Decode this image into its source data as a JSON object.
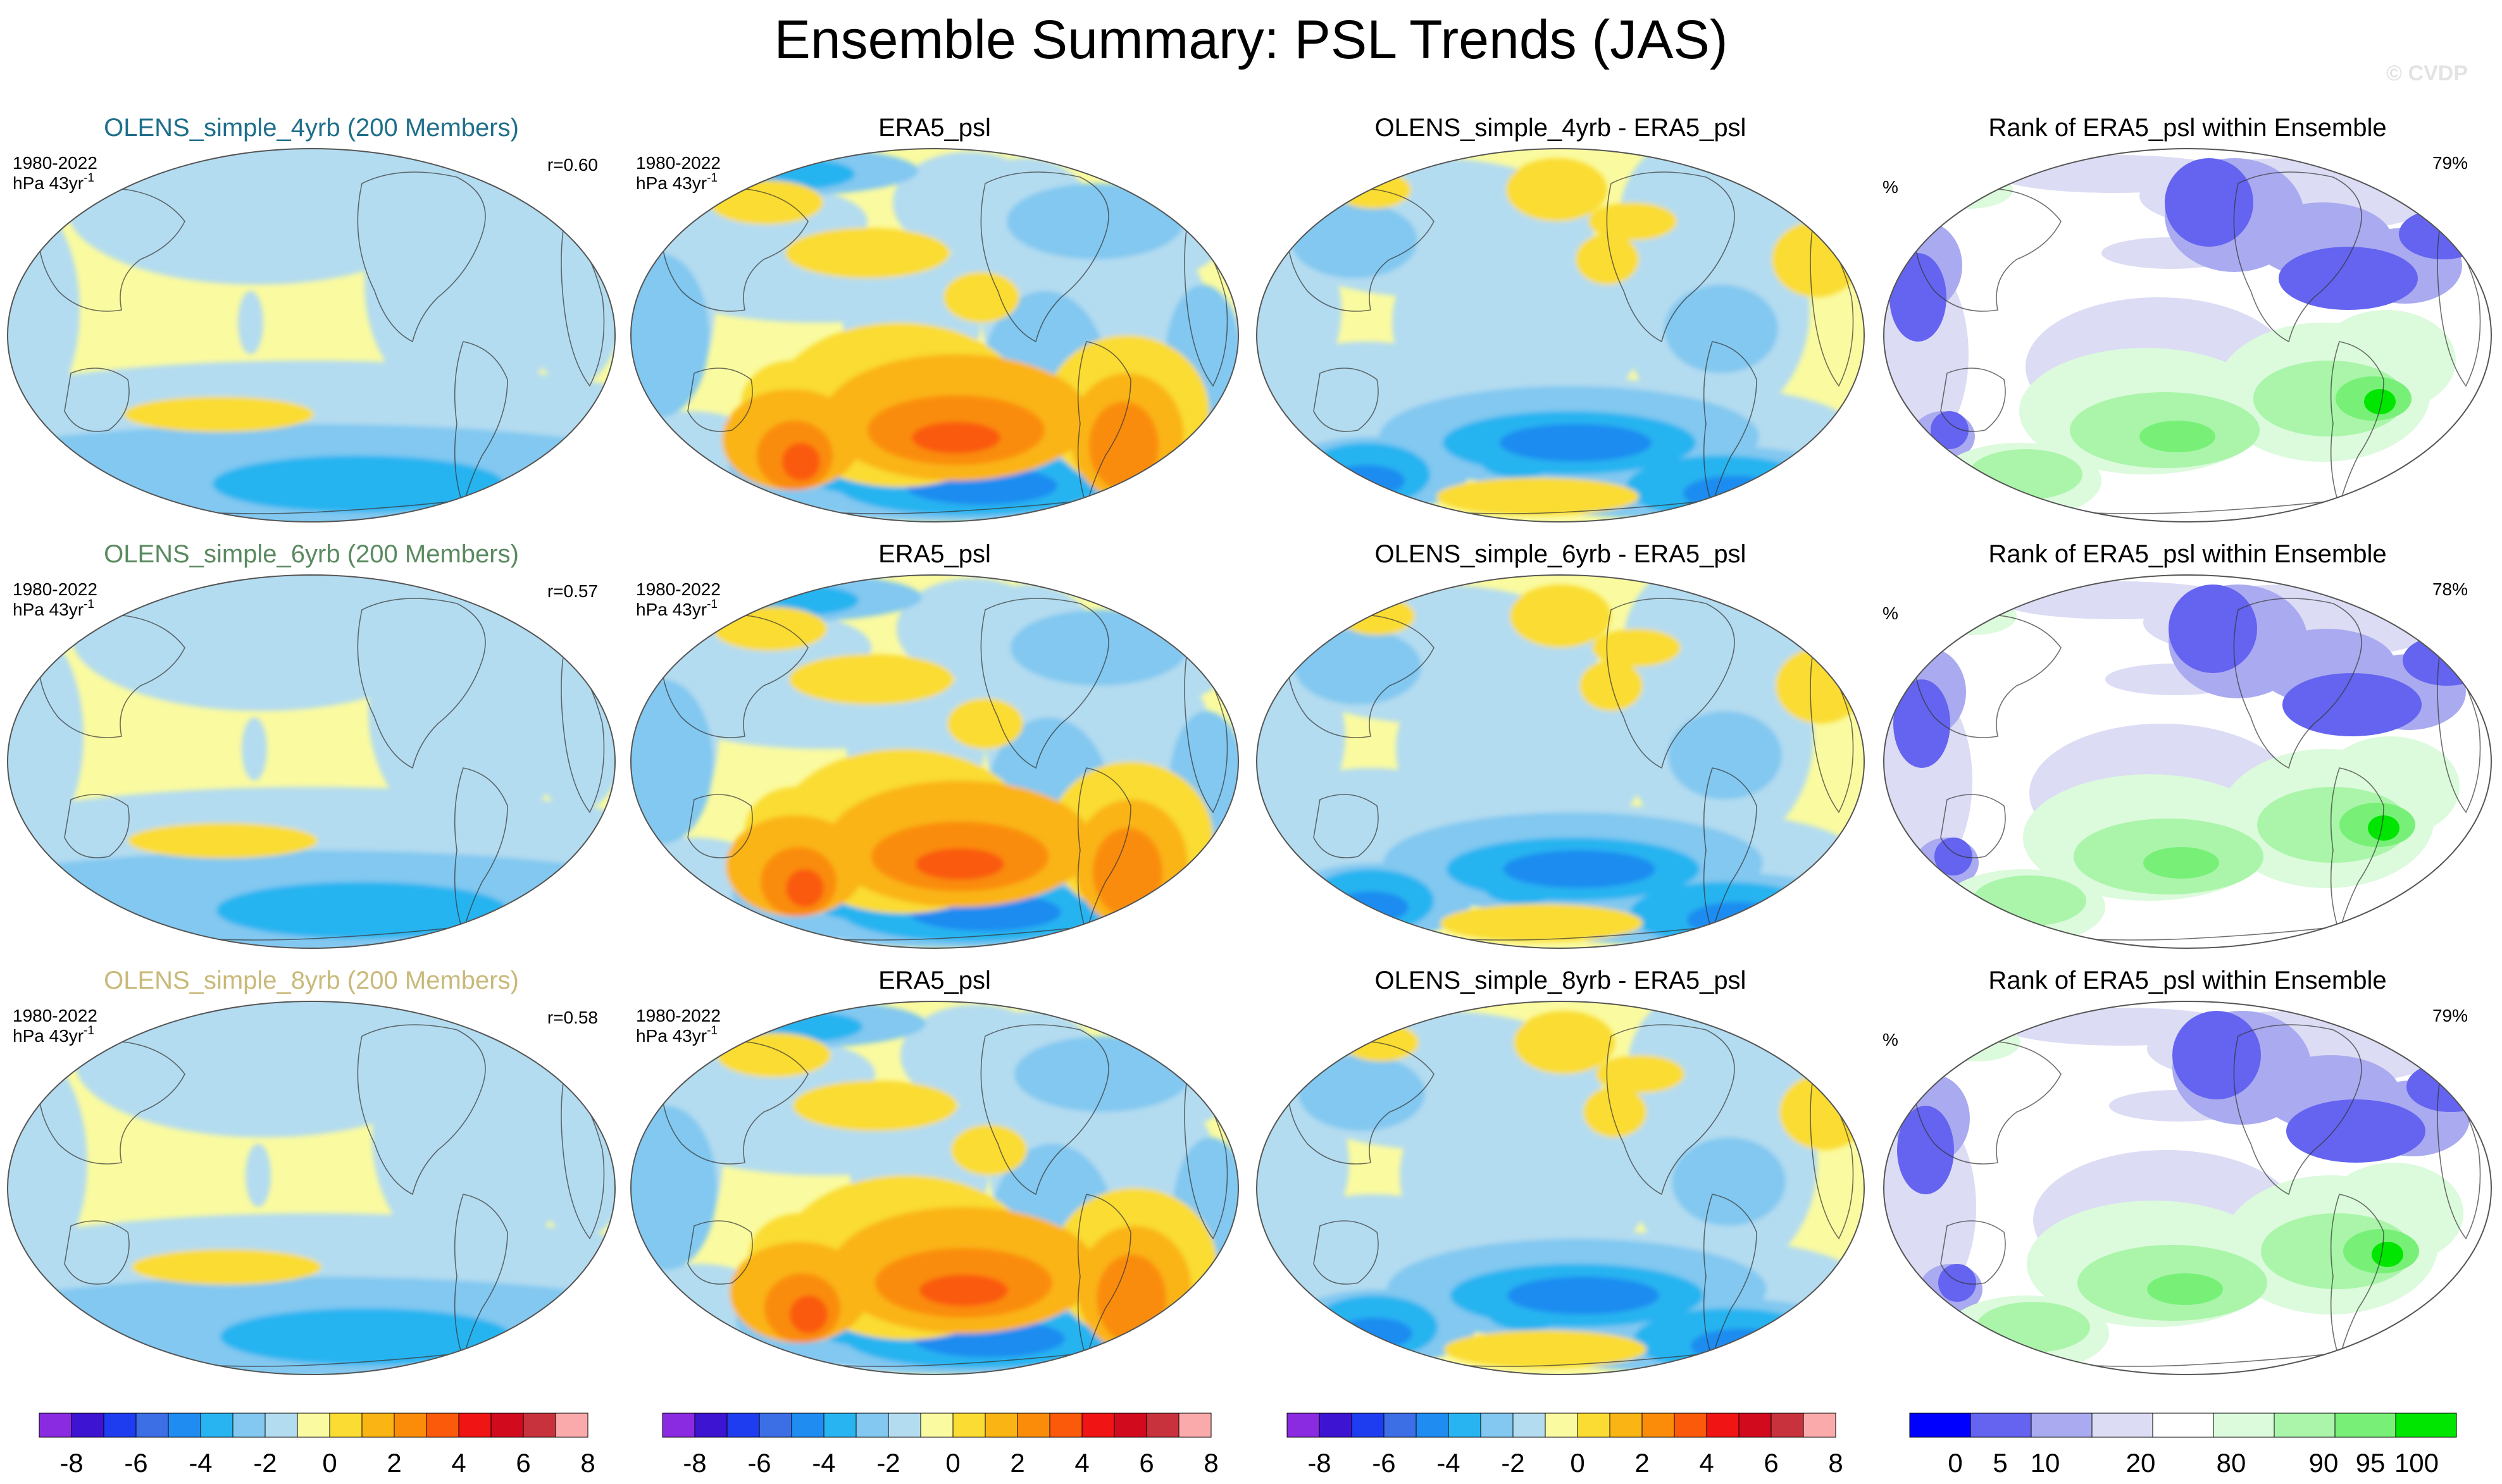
{
  "title": "Ensemble Summary: PSL Trends (JAS)",
  "watermark": "© CVDP",
  "period": "1980-2022",
  "units": "hPa 43yr",
  "units_sup": "-1",
  "pct_label": "%",
  "rows": [
    {
      "ens_title": "OLENS_simple_4yrb (200 Members)",
      "ens_color": "#1f6f8b",
      "r_text": "r=0.60",
      "obs_title": "ERA5_psl",
      "diff_title": "OLENS_simple_4yrb - ERA5_psl",
      "rank_title": "Rank of ERA5_psl within Ensemble",
      "rank_pct": "79%"
    },
    {
      "ens_title": "OLENS_simple_6yrb (200 Members)",
      "ens_color": "#5a8a60",
      "r_text": "r=0.57",
      "obs_title": "ERA5_psl",
      "diff_title": "OLENS_simple_6yrb - ERA5_psl",
      "rank_title": "Rank of ERA5_psl within Ensemble",
      "rank_pct": "78%"
    },
    {
      "ens_title": "OLENS_simple_8yrb (200 Members)",
      "ens_color": "#c9b97a",
      "r_text": "r=0.58",
      "obs_title": "ERA5_psl",
      "diff_title": "OLENS_simple_8yrb - ERA5_psl",
      "rank_title": "Rank of ERA5_psl within Ensemble",
      "rank_pct": "79%"
    }
  ],
  "chart_data": {
    "type": "heatmap",
    "projection": "Robinson, Pacific-centered",
    "trend_colorbar": {
      "colors": [
        "#8a2be2",
        "#3c14d2",
        "#1e3cf0",
        "#3c6ee6",
        "#1e8cf0",
        "#28b4f0",
        "#82c8f0",
        "#b4dcf0",
        "#fafaa0",
        "#fadc32",
        "#fab414",
        "#fa8c0a",
        "#fa5a0a",
        "#f01414",
        "#d20a1e",
        "#c8323c",
        "#faaaaa"
      ],
      "ticks": [
        "-8",
        "-6",
        "-4",
        "-2",
        "0",
        "2",
        "4",
        "6",
        "8"
      ]
    },
    "rank_colorbar": {
      "colors": [
        "#0000ff",
        "#6464f0",
        "#aaaaf0",
        "#dcdcf5",
        "#ffffff",
        "#dcfadc",
        "#aaf5aa",
        "#78f078",
        "#00e600"
      ],
      "ticks": [
        "0",
        "5",
        "10",
        "20",
        "80",
        "90",
        "95",
        "100"
      ]
    }
  }
}
